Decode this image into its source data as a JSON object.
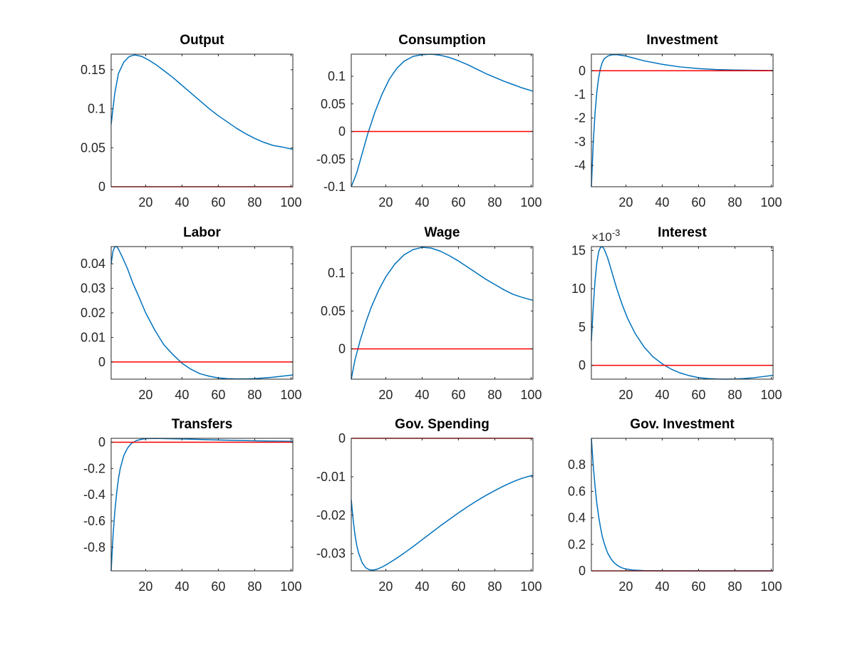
{
  "colors": {
    "response": "#0072BD",
    "zero_line": "#FF0000",
    "axes": "#262626",
    "background": "#FFFFFF"
  },
  "chart_data": [
    {
      "type": "line",
      "title": "Output",
      "xlabel": "",
      "ylabel": "",
      "xlim": [
        1,
        101
      ],
      "ylim": [
        0,
        0.17
      ],
      "xticks": [
        20,
        40,
        60,
        80,
        100
      ],
      "xtick_labels": [
        "20",
        "40",
        "60",
        "80",
        "100"
      ],
      "yticks": [
        0,
        0.05,
        0.1,
        0.15
      ],
      "ytick_labels": [
        "0",
        "0.05",
        "0.1",
        "0.15"
      ],
      "series": [
        {
          "x": [
            1,
            3,
            5,
            8,
            11,
            14,
            18,
            22,
            26,
            30,
            35,
            40,
            45,
            50,
            55,
            60,
            65,
            70,
            75,
            80,
            85,
            90,
            95,
            101
          ],
          "y": [
            0.08,
            0.12,
            0.145,
            0.16,
            0.167,
            0.169,
            0.167,
            0.162,
            0.156,
            0.149,
            0.14,
            0.13,
            0.12,
            0.11,
            0.1,
            0.091,
            0.083,
            0.075,
            0.068,
            0.062,
            0.057,
            0.053,
            0.051,
            0.048
          ]
        },
        {
          "x": [
            1,
            101
          ],
          "y": [
            0,
            0
          ]
        }
      ]
    },
    {
      "type": "line",
      "title": "Consumption",
      "xlabel": "",
      "ylabel": "",
      "xlim": [
        1,
        101
      ],
      "ylim": [
        -0.1,
        0.14
      ],
      "xticks": [
        20,
        40,
        60,
        80,
        100
      ],
      "xtick_labels": [
        "20",
        "40",
        "60",
        "80",
        "100"
      ],
      "yticks": [
        -0.1,
        -0.05,
        0,
        0.05,
        0.1
      ],
      "ytick_labels": [
        "-0.1",
        "-0.05",
        "0",
        "0.05",
        "0.1"
      ],
      "series": [
        {
          "x": [
            1,
            4,
            7,
            10,
            14,
            18,
            22,
            26,
            30,
            35,
            40,
            45,
            50,
            55,
            60,
            65,
            70,
            75,
            80,
            85,
            90,
            95,
            101
          ],
          "y": [
            -0.1,
            -0.075,
            -0.04,
            -0.005,
            0.035,
            0.068,
            0.095,
            0.114,
            0.127,
            0.136,
            0.139,
            0.14,
            0.138,
            0.134,
            0.128,
            0.121,
            0.113,
            0.105,
            0.098,
            0.091,
            0.085,
            0.079,
            0.073
          ]
        },
        {
          "x": [
            1,
            101
          ],
          "y": [
            0,
            0
          ]
        }
      ]
    },
    {
      "type": "line",
      "title": "Investment",
      "xlabel": "",
      "ylabel": "",
      "xlim": [
        1,
        101
      ],
      "ylim": [
        -4.9,
        0.7
      ],
      "xticks": [
        20,
        40,
        60,
        80,
        100
      ],
      "xtick_labels": [
        "20",
        "40",
        "60",
        "80",
        "100"
      ],
      "yticks": [
        -4,
        -3,
        -2,
        -1,
        0
      ],
      "ytick_labels": [
        "-4",
        "-3",
        "-2",
        "-1",
        "0"
      ],
      "series": [
        {
          "x": [
            1,
            2,
            3,
            4,
            5,
            6,
            7,
            8,
            10,
            12,
            15,
            20,
            25,
            30,
            40,
            50,
            60,
            70,
            80,
            90,
            101
          ],
          "y": [
            -4.9,
            -3.1,
            -1.8,
            -0.9,
            -0.3,
            0.1,
            0.35,
            0.5,
            0.62,
            0.67,
            0.68,
            0.62,
            0.52,
            0.42,
            0.27,
            0.16,
            0.09,
            0.05,
            0.03,
            0.02,
            0.01
          ]
        },
        {
          "x": [
            1,
            101
          ],
          "y": [
            0,
            0
          ]
        }
      ]
    },
    {
      "type": "line",
      "title": "Labor",
      "xlabel": "",
      "ylabel": "",
      "xlim": [
        1,
        101
      ],
      "ylim": [
        -0.007,
        0.047
      ],
      "xticks": [
        20,
        40,
        60,
        80,
        100
      ],
      "xtick_labels": [
        "20",
        "40",
        "60",
        "80",
        "100"
      ],
      "yticks": [
        0,
        0.01,
        0.02,
        0.03,
        0.04
      ],
      "ytick_labels": [
        "0",
        "0.01",
        "0.02",
        "0.03",
        "0.04"
      ],
      "series": [
        {
          "x": [
            1,
            2,
            3,
            4,
            5,
            7,
            10,
            13,
            16,
            20,
            25,
            30,
            35,
            40,
            45,
            50,
            55,
            60,
            65,
            70,
            75,
            80,
            85,
            90,
            95,
            101
          ],
          "y": [
            0.04,
            0.045,
            0.047,
            0.047,
            0.046,
            0.043,
            0.038,
            0.032,
            0.027,
            0.02,
            0.013,
            0.007,
            0.003,
            -0.0005,
            -0.003,
            -0.0048,
            -0.0058,
            -0.0065,
            -0.0068,
            -0.0069,
            -0.0069,
            -0.0068,
            -0.0065,
            -0.0062,
            -0.0058,
            -0.0053
          ]
        },
        {
          "x": [
            1,
            101
          ],
          "y": [
            0,
            0
          ]
        }
      ]
    },
    {
      "type": "line",
      "title": "Wage",
      "xlabel": "",
      "ylabel": "",
      "xlim": [
        1,
        101
      ],
      "ylim": [
        -0.04,
        0.135
      ],
      "xticks": [
        20,
        40,
        60,
        80,
        100
      ],
      "xtick_labels": [
        "20",
        "40",
        "60",
        "80",
        "100"
      ],
      "yticks": [
        0,
        0.05,
        0.1
      ],
      "ytick_labels": [
        "0",
        "0.05",
        "0.1"
      ],
      "series": [
        {
          "x": [
            1,
            3,
            6,
            9,
            12,
            16,
            20,
            25,
            30,
            35,
            40,
            45,
            50,
            55,
            60,
            65,
            70,
            75,
            80,
            85,
            90,
            95,
            101
          ],
          "y": [
            -0.04,
            -0.015,
            0.012,
            0.035,
            0.055,
            0.077,
            0.095,
            0.112,
            0.124,
            0.131,
            0.134,
            0.133,
            0.129,
            0.123,
            0.116,
            0.108,
            0.1,
            0.092,
            0.085,
            0.078,
            0.072,
            0.068,
            0.064
          ]
        },
        {
          "x": [
            1,
            101
          ],
          "y": [
            0,
            0
          ]
        }
      ]
    },
    {
      "type": "line",
      "title": "Interest",
      "xlabel": "",
      "ylabel": "",
      "exponent_label": "×10",
      "exponent_power": "-3",
      "xlim": [
        1,
        101
      ],
      "ylim": [
        -1.8,
        15.5
      ],
      "xticks": [
        20,
        40,
        60,
        80,
        100
      ],
      "xtick_labels": [
        "20",
        "40",
        "60",
        "80",
        "100"
      ],
      "yticks": [
        0,
        5,
        10,
        15
      ],
      "ytick_labels": [
        "0",
        "5",
        "10",
        "15"
      ],
      "series": [
        {
          "x": [
            1,
            2,
            3,
            4,
            5,
            6,
            7,
            8,
            10,
            12,
            15,
            18,
            21,
            25,
            30,
            35,
            40,
            45,
            50,
            55,
            60,
            65,
            70,
            75,
            80,
            85,
            90,
            95,
            101
          ],
          "y": [
            3.2,
            7.5,
            11.0,
            13.4,
            14.8,
            15.4,
            15.5,
            15.2,
            14.0,
            12.4,
            10.0,
            7.9,
            6.1,
            4.2,
            2.4,
            1.1,
            0.2,
            -0.5,
            -1.0,
            -1.35,
            -1.6,
            -1.72,
            -1.78,
            -1.8,
            -1.78,
            -1.72,
            -1.62,
            -1.48,
            -1.3
          ]
        },
        {
          "x": [
            1,
            101
          ],
          "y": [
            0,
            0
          ]
        }
      ]
    },
    {
      "type": "line",
      "title": "Transfers",
      "xlabel": "",
      "ylabel": "",
      "xlim": [
        1,
        101
      ],
      "ylim": [
        -0.98,
        0.03
      ],
      "xticks": [
        20,
        40,
        60,
        80,
        100
      ],
      "xtick_labels": [
        "20",
        "40",
        "60",
        "80",
        "100"
      ],
      "yticks": [
        -0.8,
        -0.6,
        -0.4,
        -0.2,
        0
      ],
      "ytick_labels": [
        "-0.8",
        "-0.6",
        "-0.4",
        "-0.2",
        "0"
      ],
      "series": [
        {
          "x": [
            1,
            2,
            3,
            4,
            5,
            6,
            8,
            10,
            12,
            15,
            18,
            21,
            25,
            30,
            40,
            50,
            60,
            70,
            80,
            90,
            101
          ],
          "y": [
            -0.98,
            -0.72,
            -0.53,
            -0.39,
            -0.28,
            -0.2,
            -0.1,
            -0.045,
            -0.01,
            0.013,
            0.024,
            0.028,
            0.029,
            0.028,
            0.025,
            0.021,
            0.017,
            0.014,
            0.011,
            0.009,
            0.007
          ]
        },
        {
          "x": [
            1,
            101
          ],
          "y": [
            0,
            0
          ]
        }
      ]
    },
    {
      "type": "line",
      "title": "Gov. Spending",
      "xlabel": "",
      "ylabel": "",
      "xlim": [
        1,
        101
      ],
      "ylim": [
        -0.0345,
        0
      ],
      "xticks": [
        20,
        40,
        60,
        80,
        100
      ],
      "xtick_labels": [
        "20",
        "40",
        "60",
        "80",
        "100"
      ],
      "yticks": [
        -0.03,
        -0.02,
        -0.01,
        0
      ],
      "ytick_labels": [
        "-0.03",
        "-0.02",
        "-0.01",
        "0"
      ],
      "series": [
        {
          "x": [
            1,
            2,
            3,
            4,
            5,
            7,
            9,
            11,
            13,
            15,
            18,
            21,
            25,
            30,
            35,
            40,
            45,
            50,
            55,
            60,
            65,
            70,
            75,
            80,
            85,
            90,
            95,
            101
          ],
          "y": [
            -0.016,
            -0.021,
            -0.025,
            -0.0278,
            -0.0298,
            -0.0324,
            -0.0337,
            -0.0342,
            -0.0343,
            -0.0341,
            -0.0335,
            -0.0327,
            -0.0315,
            -0.0299,
            -0.0282,
            -0.0264,
            -0.0246,
            -0.0228,
            -0.0211,
            -0.0194,
            -0.0178,
            -0.0163,
            -0.0149,
            -0.0136,
            -0.0124,
            -0.0113,
            -0.0104,
            -0.0096
          ]
        },
        {
          "x": [
            1,
            101
          ],
          "y": [
            0,
            0
          ]
        }
      ]
    },
    {
      "type": "line",
      "title": "Gov. Investment",
      "xlabel": "",
      "ylabel": "",
      "xlim": [
        1,
        101
      ],
      "ylim": [
        0,
        1
      ],
      "xticks": [
        20,
        40,
        60,
        80,
        100
      ],
      "xtick_labels": [
        "20",
        "40",
        "60",
        "80",
        "100"
      ],
      "yticks": [
        0,
        0.2,
        0.4,
        0.6,
        0.8
      ],
      "ytick_labels": [
        "0",
        "0.2",
        "0.4",
        "0.6",
        "0.8"
      ],
      "series": [
        {
          "x": [
            1,
            2,
            3,
            4,
            5,
            6,
            7,
            8,
            9,
            10,
            12,
            14,
            16,
            18,
            20,
            24,
            30,
            40,
            60,
            80,
            101
          ],
          "y": [
            1.0,
            0.8,
            0.64,
            0.51,
            0.41,
            0.33,
            0.26,
            0.21,
            0.17,
            0.134,
            0.086,
            0.055,
            0.035,
            0.022,
            0.014,
            0.006,
            0.002,
            0.0005,
            0.0,
            0.0,
            0.0
          ]
        },
        {
          "x": [
            1,
            101
          ],
          "y": [
            0,
            0
          ]
        }
      ]
    }
  ]
}
